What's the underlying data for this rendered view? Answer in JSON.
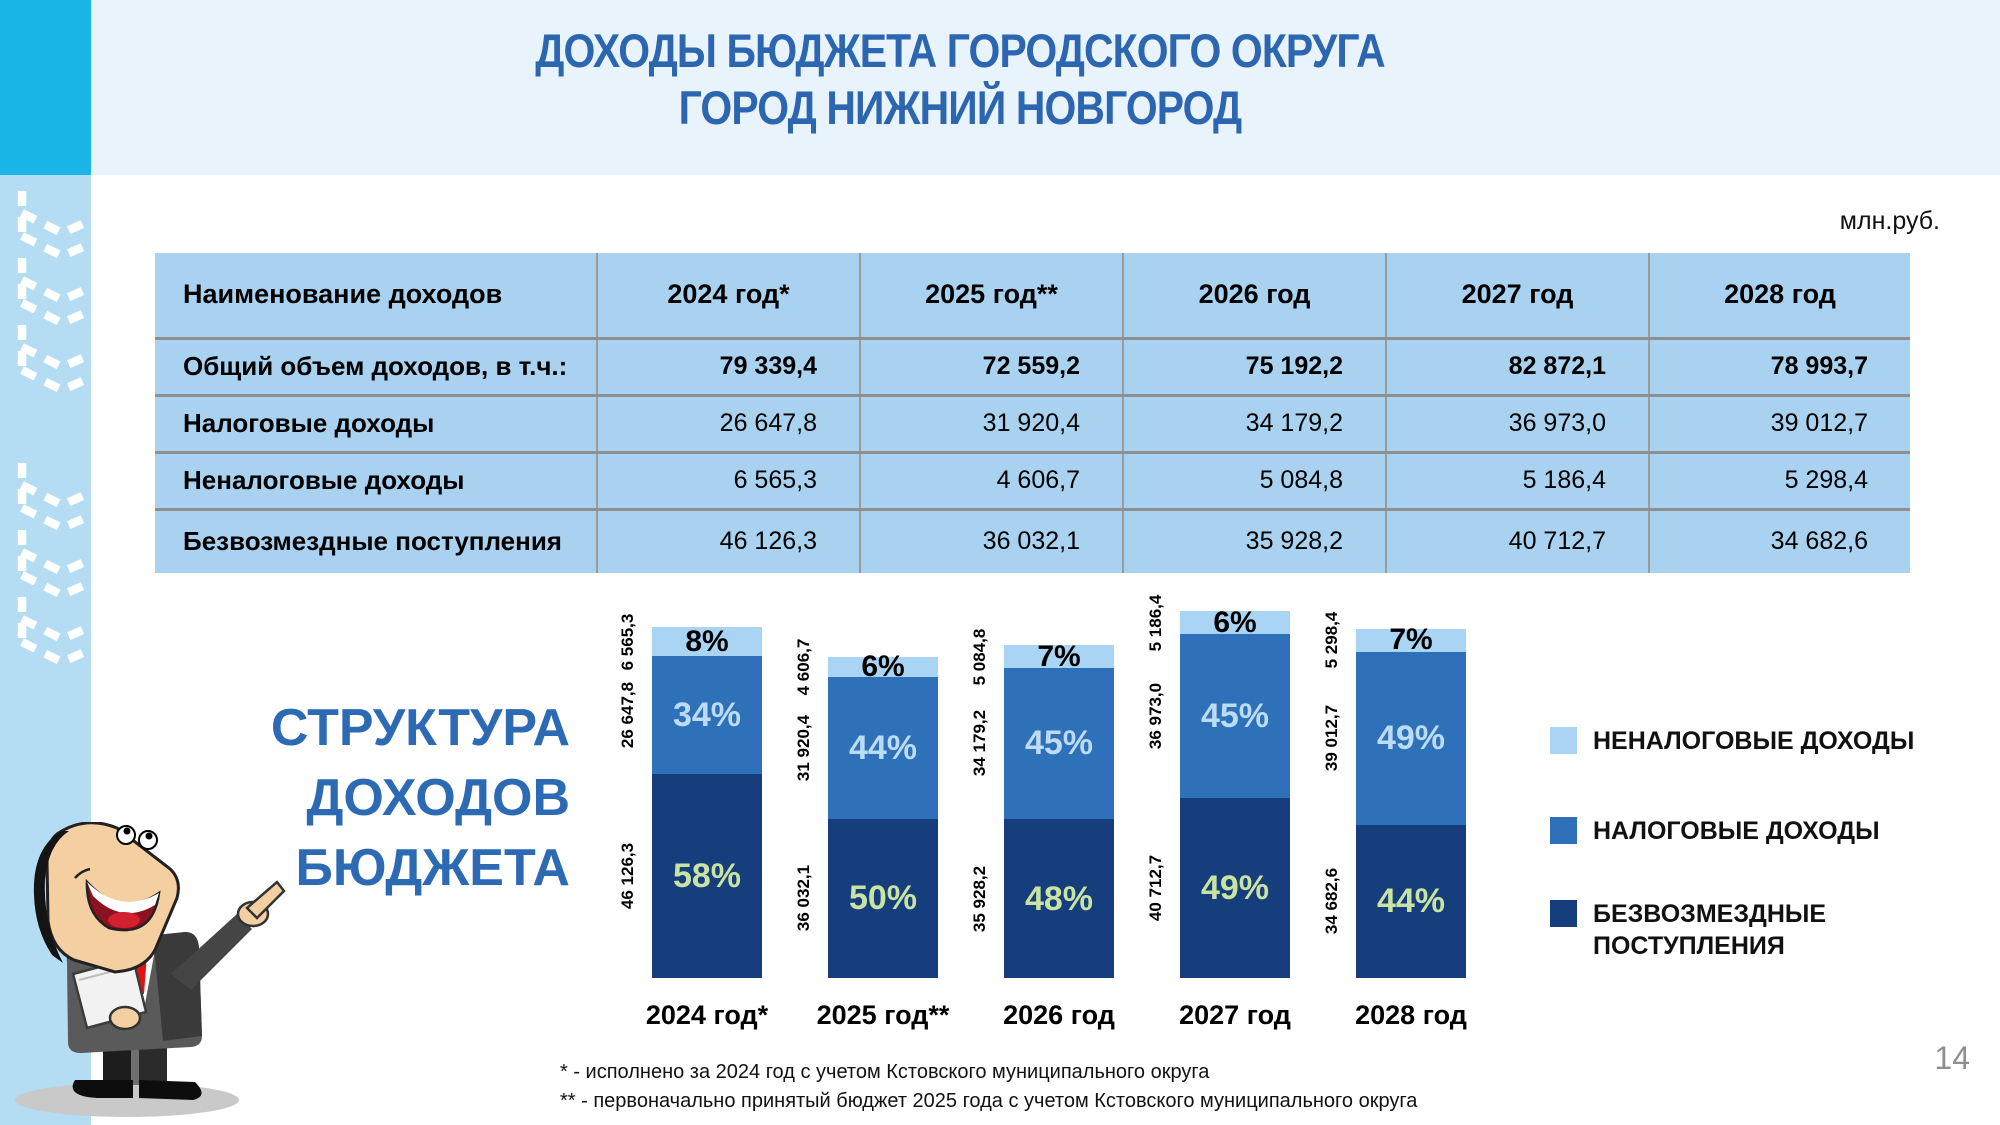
{
  "header": {
    "title_line1": "ДОХОДЫ БЮДЖЕТА ГОРОДСКОГО ОКРУГА",
    "title_line2": "ГОРОД НИЖНИЙ НОВГОРОД",
    "units": "млн.руб."
  },
  "table": {
    "columns": [
      "Наименование доходов",
      "2024 год*",
      "2025 год**",
      "2026 год",
      "2027 год",
      "2028 год"
    ],
    "rows": [
      {
        "label": "Общий объем доходов, в т.ч.:",
        "values": [
          "79 339,4",
          "72 559,2",
          "75 192,2",
          "82 872,1",
          "78 993,7"
        ]
      },
      {
        "label": "Налоговые доходы",
        "values": [
          "26 647,8",
          "31 920,4",
          "34 179,2",
          "36 973,0",
          "39 012,7"
        ]
      },
      {
        "label": "Неналоговые доходы",
        "values": [
          "6 565,3",
          "4 606,7",
          "5 084,8",
          "5 186,4",
          "5 298,4"
        ]
      },
      {
        "label": "Безвозмездные поступления",
        "values": [
          "46 126,3",
          "36 032,1",
          "35 928,2",
          "40 712,7",
          "34 682,6"
        ]
      }
    ]
  },
  "section": {
    "line1": "СТРУКТУРА",
    "line2": "ДОХОДОВ",
    "line3": "БЮДЖЕТА"
  },
  "chart_data": {
    "type": "bar",
    "stacked": true,
    "title": "СТРУКТУРА ДОХОДОВ БЮДЖЕТА",
    "categories": [
      "2024 год*",
      "2025 год**",
      "2026 год",
      "2027 год",
      "2028 год"
    ],
    "totals": [
      79339.4,
      72559.2,
      75192.2,
      82872.1,
      78993.7
    ],
    "units": "млн.руб.",
    "legend_position": "right",
    "grid": false,
    "series": [
      {
        "name": "НЕНАЛОГОВЫЕ ДОХОДЫ",
        "color": "#a9d4f4",
        "pct_color": "#000000",
        "values": [
          6565.3,
          4606.7,
          5084.8,
          5186.4,
          5298.4
        ],
        "values_fmt": [
          "6 565,3",
          "4 606,7",
          "5 084,8",
          "5 186,4",
          "5 298,4"
        ],
        "pct": [
          "8%",
          "6%",
          "7%",
          "6%",
          "7%"
        ]
      },
      {
        "name": "НАЛОГОВЫЕ ДОХОДЫ",
        "color": "#2e71b9",
        "pct_color": "#bcdcf6",
        "values": [
          26647.8,
          31920.4,
          34179.2,
          36973.0,
          39012.7
        ],
        "values_fmt": [
          "26 647,8",
          "31 920,4",
          "34 179,2",
          "36 973,0",
          "39 012,7"
        ],
        "pct": [
          "34%",
          "44%",
          "45%",
          "45%",
          "49%"
        ]
      },
      {
        "name": "БЕЗВОЗМЕЗДНЫЕ ПОСТУПЛЕНИЯ",
        "color": "#163e7c",
        "pct_color": "#c9e3a2",
        "values": [
          46126.3,
          36032.1,
          35928.2,
          40712.7,
          34682.6
        ],
        "values_fmt": [
          "46 126,3",
          "36 032,1",
          "35 928,2",
          "40 712,7",
          "34 682,6"
        ],
        "pct": [
          "58%",
          "50%",
          "48%",
          "49%",
          "44%"
        ]
      }
    ]
  },
  "legend": {
    "items": [
      {
        "label": "НЕНАЛОГОВЫЕ ДОХОДЫ",
        "color": "#a9d4f4"
      },
      {
        "label": "НАЛОГОВЫЕ ДОХОДЫ",
        "color": "#2e71b9"
      },
      {
        "label": "БЕЗВОЗМЕЗДНЫЕ ПОСТУПЛЕНИЯ",
        "color": "#163e7c"
      }
    ]
  },
  "footnotes": [
    "* - исполнено за 2024 год с учетом Кстовского муниципального округа",
    "** - первоначально принятый бюджет 2025 года с учетом Кстовского муниципального округа"
  ],
  "page_number": "14",
  "colors": {
    "title_blue": "#2c66b0",
    "header_band": "#e9f3fc",
    "cyan_block": "#1ab6e8",
    "sidebar": "#b4dcf2",
    "table_cell": "#a9d2f1",
    "table_border": "#8f8f8f"
  }
}
